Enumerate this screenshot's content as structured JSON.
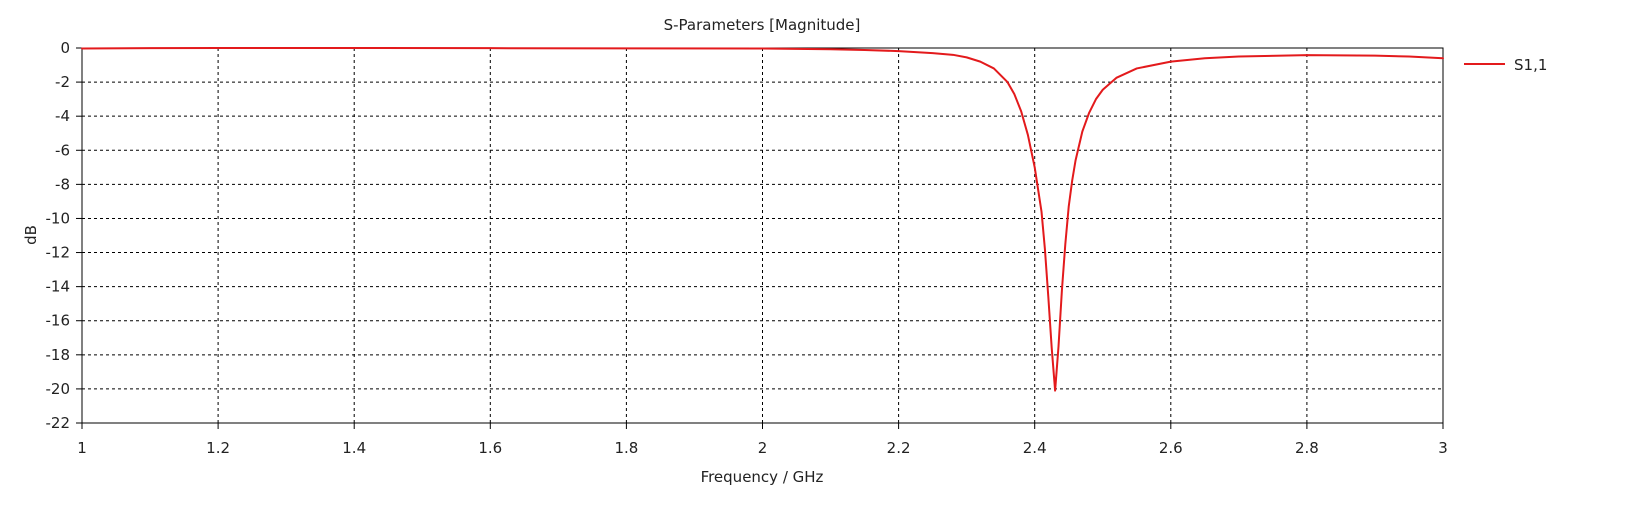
{
  "chart_data": {
    "type": "line",
    "title": "S-Parameters [Magnitude]",
    "xlabel": "Frequency / GHz",
    "ylabel": "dB",
    "xlim": [
      1,
      3
    ],
    "ylim": [
      -22,
      0
    ],
    "x_ticks": [
      1,
      1.2,
      1.4,
      1.6,
      1.8,
      2,
      2.2,
      2.4,
      2.6,
      2.8,
      3
    ],
    "x_tick_labels": [
      "1",
      "1.2",
      "1.4",
      "1.6",
      "1.8",
      "2",
      "2.2",
      "2.4",
      "2.6",
      "2.8",
      "3"
    ],
    "y_ticks": [
      0,
      -2,
      -4,
      -6,
      -8,
      -10,
      -12,
      -14,
      -16,
      -18,
      -20,
      -22
    ],
    "y_tick_labels": [
      "0",
      "-2",
      "-4",
      "-6",
      "-8",
      "-10",
      "-12",
      "-14",
      "-16",
      "-18",
      "-20",
      "-22"
    ],
    "grid": true,
    "legend_position": "right",
    "series": [
      {
        "name": "S1,1",
        "color": "#e31a1c",
        "x": [
          1.0,
          1.1,
          1.2,
          1.4,
          1.6,
          1.8,
          2.0,
          2.1,
          2.15,
          2.2,
          2.25,
          2.28,
          2.3,
          2.32,
          2.34,
          2.36,
          2.37,
          2.38,
          2.39,
          2.4,
          2.41,
          2.415,
          2.42,
          2.425,
          2.43,
          2.435,
          2.44,
          2.445,
          2.45,
          2.455,
          2.46,
          2.47,
          2.48,
          2.49,
          2.5,
          2.52,
          2.55,
          2.6,
          2.65,
          2.7,
          2.8,
          2.9,
          2.95,
          3.0
        ],
        "y": [
          -0.03,
          -0.01,
          -0.0,
          -0.0,
          -0.01,
          -0.02,
          -0.03,
          -0.07,
          -0.12,
          -0.18,
          -0.3,
          -0.4,
          -0.55,
          -0.8,
          -1.2,
          -2.0,
          -2.7,
          -3.7,
          -5.1,
          -7.0,
          -9.6,
          -11.8,
          -14.6,
          -17.6,
          -20.1,
          -17.5,
          -14.2,
          -11.5,
          -9.3,
          -7.8,
          -6.6,
          -4.9,
          -3.8,
          -3.0,
          -2.45,
          -1.75,
          -1.2,
          -0.8,
          -0.6,
          -0.5,
          -0.42,
          -0.45,
          -0.5,
          -0.6
        ]
      }
    ]
  }
}
